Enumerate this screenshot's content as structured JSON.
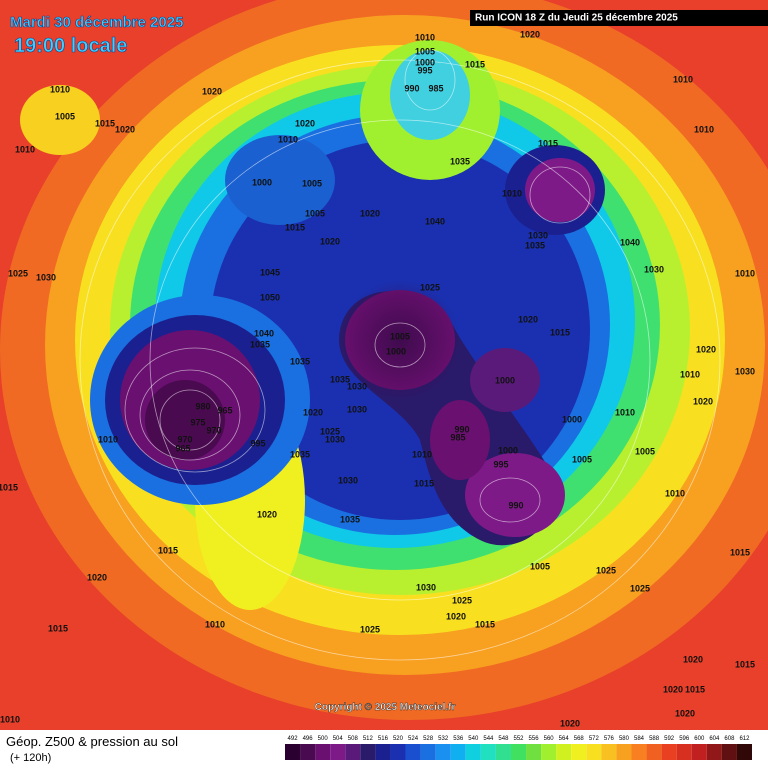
{
  "header": {
    "date": "Mardi 30 décembre 2025",
    "time": "19:00 locale",
    "run": "Run ICON 18 Z du Jeudi 25 décembre 2025"
  },
  "copyright": "Copyright © 2025 Meteociel.fr",
  "footer": {
    "title": "Géop. Z500 & pression au sol",
    "lead": "(+ 120h)"
  },
  "colorbar": {
    "ticks": [
      492,
      496,
      500,
      504,
      508,
      512,
      516,
      520,
      524,
      528,
      532,
      536,
      540,
      544,
      548,
      552,
      556,
      560,
      564,
      568,
      572,
      576,
      580,
      584,
      588,
      592,
      596,
      600,
      604,
      608,
      612
    ],
    "colors": [
      "#2a0030",
      "#4a0a50",
      "#6a1070",
      "#7e1a88",
      "#5a1a7a",
      "#2a1a6a",
      "#1a2090",
      "#1a30b0",
      "#1a50d0",
      "#1a70e0",
      "#1a90f0",
      "#10b0f0",
      "#10d0e0",
      "#20e0c0",
      "#30e090",
      "#40e060",
      "#70e040",
      "#a0f030",
      "#d0f020",
      "#f0f020",
      "#f8e020",
      "#f8c020",
      "#f8a020",
      "#f88020",
      "#f06020",
      "#e84020",
      "#d83020",
      "#c02020",
      "#901818",
      "#601010",
      "#300808"
    ]
  },
  "pressure_labels": [
    1010,
    1005,
    1015,
    1020,
    1010,
    1020,
    1010,
    1005,
    1000,
    995,
    990,
    985,
    1015,
    1020,
    1010,
    1010,
    1020,
    1010,
    1000,
    1005,
    1005,
    1015,
    1020,
    1020,
    1040,
    1035,
    1015,
    1010,
    1030,
    1035,
    1040,
    1025,
    1045,
    1050,
    1040,
    1035,
    1035,
    1035,
    1030,
    1005,
    1000,
    1000,
    1020,
    1015,
    1000,
    1010,
    980,
    965,
    975,
    970,
    970,
    965,
    995,
    1010,
    1020,
    1030,
    1030,
    1025,
    1035,
    990,
    985,
    1010,
    1000,
    995,
    1015,
    990,
    1005,
    1030,
    1035,
    1020,
    1015,
    1020,
    1015,
    1010,
    1030,
    1025,
    1020,
    1015,
    1005,
    1025,
    1025,
    1025,
    1010,
    1005,
    1015,
    1020,
    1030,
    1030,
    1020,
    1010,
    1010,
    1020,
    1015,
    1020,
    1015,
    1020,
    1020,
    1010,
    1015,
    1030,
    1025
  ]
}
